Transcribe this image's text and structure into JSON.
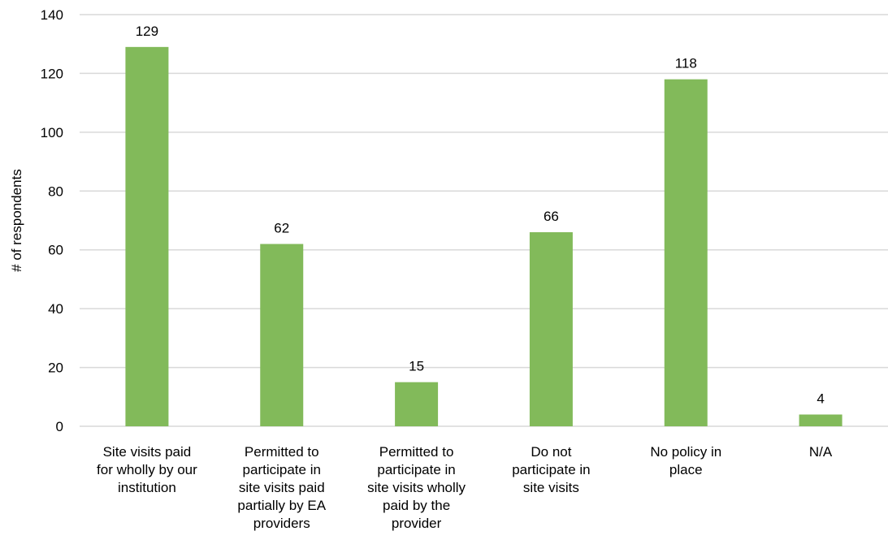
{
  "chart_data": {
    "type": "bar",
    "categories": [
      [
        "Site visits paid",
        "for wholly by our",
        "institution"
      ],
      [
        "Permitted to",
        "participate in",
        "site visits paid",
        "partially by EA",
        "providers"
      ],
      [
        "Permitted to",
        "participate in",
        "site visits wholly",
        "paid by the",
        "provider"
      ],
      [
        "Do not",
        "participate in",
        "site visits"
      ],
      [
        "No policy in",
        "place"
      ],
      [
        "N/A"
      ]
    ],
    "values": [
      129,
      62,
      15,
      66,
      118,
      4
    ],
    "data_labels": [
      "129",
      "62",
      "15",
      "66",
      "118",
      "4"
    ],
    "title": "",
    "xlabel": "",
    "ylabel": "# of respondents",
    "ylim": [
      0,
      140
    ],
    "yticks": [
      0,
      20,
      40,
      60,
      80,
      100,
      120,
      140
    ],
    "ytick_labels": [
      "0",
      "20",
      "40",
      "60",
      "80",
      "100",
      "120",
      "140"
    ],
    "grid": true,
    "legend": "none",
    "bar_color": "#82BA5A",
    "grid_color": "#D9D9D9"
  }
}
